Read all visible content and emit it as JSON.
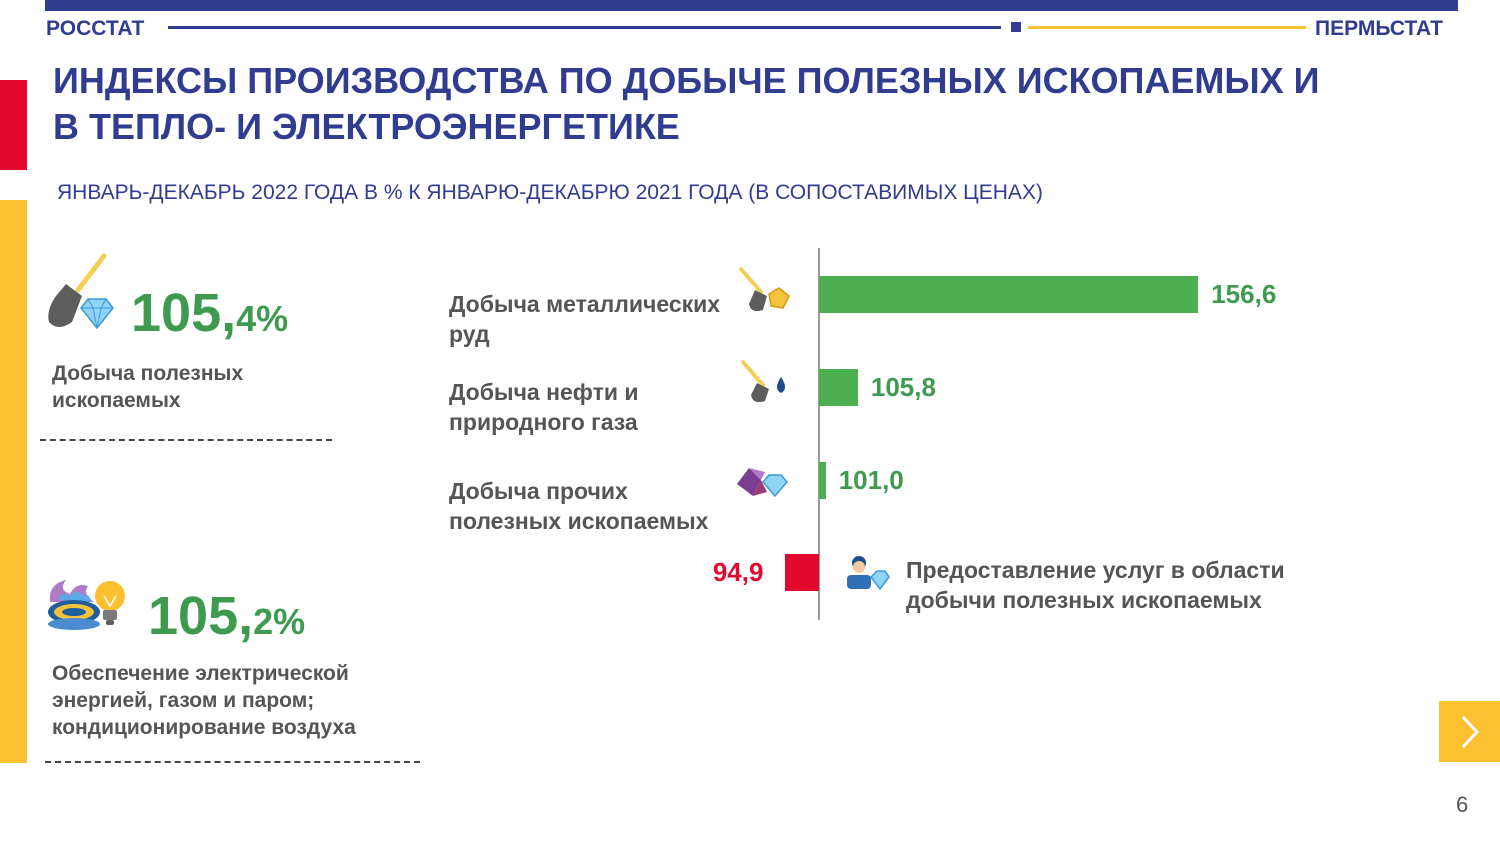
{
  "header": {
    "left_brand": "РОССТАТ",
    "right_brand": "ПЕРМЬСТАТ",
    "title_line1": "ИНДЕКСЫ ПРОИЗВОДСТВА ПО ДОБЫЧЕ ПОЛЕЗНЫХ ИСКОПАЕМЫХ И",
    "title_line2": "В ТЕПЛО- И ЭЛЕКТРОЭНЕРГЕТИКЕ",
    "subtitle": "ЯНВАРЬ-ДЕКАБРЬ 2022 ГОДА В % К ЯНВАРЮ-ДЕКАБРЮ 2021 ГОДА (В СОПОСТАВИМЫХ ЦЕНАХ)"
  },
  "colors": {
    "navy": "#2f3c8f",
    "gold": "#fdc02f",
    "red": "#e2092e",
    "green": "#4caf50",
    "kpi_green": "#3d9a4e"
  },
  "kpis": [
    {
      "int": "105,",
      "frac": "4%",
      "label_line1": "Добыча полезных",
      "label_line2": "ископаемых",
      "icon": "shovel-diamond-icon"
    },
    {
      "int": "105,",
      "frac": "2%",
      "label_line1": "Обеспечение электрической",
      "label_line2": "энергией, газом и паром;",
      "label_line3": "кондиционирование воздуха",
      "icon": "gas-burner-lightbulb-icon"
    }
  ],
  "chart_data": {
    "type": "bar",
    "orientation": "horizontal",
    "baseline": 100,
    "categories": [
      "Добыча металлических руд",
      "Добыча нефти и природного газа",
      "Добыча прочих полезных ископаемых",
      "Предоставление услуг в области добычи полезных ископаемых"
    ],
    "category_lines": [
      [
        "Добыча металлических",
        "руд"
      ],
      [
        "Добыча нефти и",
        "природного газа"
      ],
      [
        "Добыча прочих",
        "полезных ископаемых"
      ],
      [
        "Предоставление услуг в области",
        "добычи полезных ископаемых"
      ]
    ],
    "values": [
      156.6,
      105.8,
      101.0,
      94.9
    ],
    "value_labels": [
      "156,6",
      "105,8",
      "101,0",
      "94,9"
    ],
    "icons": [
      "shovel-gold-icon",
      "shovel-oil-drop-icon",
      "gems-icon",
      "worker-icon"
    ]
  },
  "footer": {
    "page_number": "6",
    "next_icon": "chevron-right-icon"
  }
}
